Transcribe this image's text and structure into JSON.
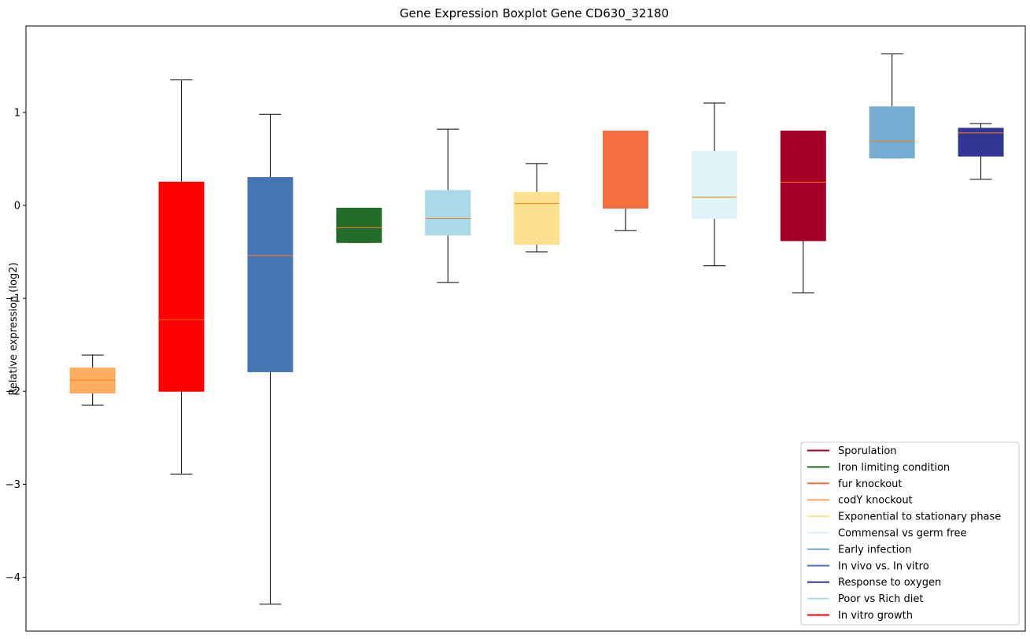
{
  "chart_data": {
    "type": "boxplot",
    "title": "Gene Expression Boxplot Gene CD630_32180",
    "xlabel": "",
    "ylabel": "Relative expression (log2)",
    "ylim": [
      -4.58,
      1.93
    ],
    "yticks": [
      1,
      0,
      -1,
      -2,
      -3,
      -4
    ],
    "ytick_labels": [
      "1",
      "0",
      "−1",
      "−2",
      "−3",
      "−4"
    ],
    "median_color": "#ff7f0e",
    "whisker_color": "#000000",
    "legend_position": "lower-right",
    "boxes": [
      {
        "condition": "codY knockout",
        "color": "#fdae61",
        "whisker_low": -2.15,
        "q1": -2.02,
        "median": -1.88,
        "q3": -1.75,
        "whisker_high": -1.61
      },
      {
        "condition": "In vitro growth",
        "color": "#ff0000",
        "whisker_low": -2.89,
        "q1": -2.0,
        "median": -1.23,
        "q3": 0.25,
        "whisker_high": 1.35
      },
      {
        "condition": "In vivo vs. In vitro",
        "color": "#4575b4",
        "whisker_low": -4.29,
        "q1": -1.79,
        "median": -0.54,
        "q3": 0.3,
        "whisker_high": 0.98
      },
      {
        "condition": "Iron limiting condition",
        "color": "#226b2a",
        "whisker_low": -0.4,
        "q1": -0.4,
        "median": -0.24,
        "q3": -0.03,
        "whisker_high": -0.03
      },
      {
        "condition": "Poor vs Rich diet",
        "color": "#abd9e9",
        "whisker_low": -0.83,
        "q1": -0.32,
        "median": -0.14,
        "q3": 0.16,
        "whisker_high": 0.82
      },
      {
        "condition": "Exponential to stationary phase",
        "color": "#fee090",
        "whisker_low": -0.5,
        "q1": -0.42,
        "median": 0.02,
        "q3": 0.14,
        "whisker_high": 0.45
      },
      {
        "condition": "fur knockout",
        "color": "#f46d43",
        "whisker_low": -0.27,
        "q1": -0.03,
        "median": 0.03,
        "q3": 0.8,
        "whisker_high": 0.8
      },
      {
        "condition": "Commensal vs germ free",
        "color": "#e0f3f8",
        "whisker_low": -0.65,
        "q1": -0.14,
        "median": 0.09,
        "q3": 0.58,
        "whisker_high": 1.1
      },
      {
        "condition": "Sporulation",
        "color": "#a50026",
        "whisker_low": -0.94,
        "q1": -0.38,
        "median": 0.25,
        "q3": 0.8,
        "whisker_high": 0.8
      },
      {
        "condition": "Early infection",
        "color": "#74add1",
        "whisker_low": 0.51,
        "q1": 0.51,
        "median": 0.69,
        "q3": 1.06,
        "whisker_high": 1.63
      },
      {
        "condition": "Response to oxygen",
        "color": "#313695",
        "whisker_low": 0.28,
        "q1": 0.53,
        "median": 0.78,
        "q3": 0.83,
        "whisker_high": 0.88
      }
    ],
    "legend": [
      {
        "label": "Sporulation",
        "color": "#a50026"
      },
      {
        "label": "Iron limiting condition",
        "color": "#226b2a"
      },
      {
        "label": "fur knockout",
        "color": "#f46d43"
      },
      {
        "label": "codY knockout",
        "color": "#fdae61"
      },
      {
        "label": "Exponential to stationary phase",
        "color": "#fee090"
      },
      {
        "label": "Commensal vs germ free",
        "color": "#e0f3f8"
      },
      {
        "label": "Early infection",
        "color": "#74add1"
      },
      {
        "label": "In vivo vs. In vitro",
        "color": "#4575b4"
      },
      {
        "label": "Response to oxygen",
        "color": "#313695"
      },
      {
        "label": "Poor vs Rich diet",
        "color": "#abd9e9"
      },
      {
        "label": "In vitro growth",
        "color": "#ff0000"
      }
    ]
  }
}
